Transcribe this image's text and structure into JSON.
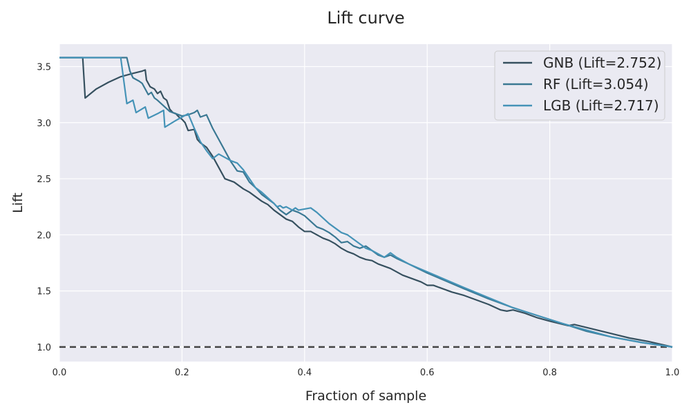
{
  "chart_data": {
    "type": "line",
    "title": "Lift curve",
    "xlabel": "Fraction of sample",
    "ylabel": "Lift",
    "xlim": [
      0,
      1
    ],
    "ylim": [
      0.87,
      3.7
    ],
    "x_ticks": [
      "0.0",
      "0.2",
      "0.4",
      "0.6",
      "0.8",
      "1.0"
    ],
    "y_ticks": [
      "1.0",
      "1.5",
      "2.0",
      "2.5",
      "3.0",
      "3.5"
    ],
    "grid": true,
    "legend_position": "top-right",
    "background_color": "#eaeaf2",
    "baseline": {
      "y": 1.0,
      "style": "dashed",
      "color": "#444444"
    },
    "series": [
      {
        "name": "GNB (Lift=2.752)",
        "color": "#36505f",
        "points": [
          [
            0,
            3.58
          ],
          [
            0.038,
            3.58
          ],
          [
            0.042,
            3.22
          ],
          [
            0.06,
            3.3
          ],
          [
            0.08,
            3.36
          ],
          [
            0.1,
            3.41
          ],
          [
            0.12,
            3.44
          ],
          [
            0.135,
            3.46
          ],
          [
            0.14,
            3.47
          ],
          [
            0.142,
            3.38
          ],
          [
            0.148,
            3.32
          ],
          [
            0.155,
            3.3
          ],
          [
            0.16,
            3.26
          ],
          [
            0.165,
            3.28
          ],
          [
            0.17,
            3.22
          ],
          [
            0.175,
            3.2
          ],
          [
            0.18,
            3.12
          ],
          [
            0.185,
            3.09
          ],
          [
            0.19,
            3.08
          ],
          [
            0.195,
            3.05
          ],
          [
            0.2,
            3.03
          ],
          [
            0.205,
            3.0
          ],
          [
            0.21,
            2.93
          ],
          [
            0.22,
            2.94
          ],
          [
            0.225,
            2.85
          ],
          [
            0.23,
            2.82
          ],
          [
            0.24,
            2.78
          ],
          [
            0.25,
            2.7
          ],
          [
            0.26,
            2.6
          ],
          [
            0.265,
            2.55
          ],
          [
            0.27,
            2.5
          ],
          [
            0.275,
            2.49
          ],
          [
            0.28,
            2.48
          ],
          [
            0.285,
            2.47
          ],
          [
            0.29,
            2.45
          ],
          [
            0.295,
            2.43
          ],
          [
            0.3,
            2.41
          ],
          [
            0.31,
            2.38
          ],
          [
            0.32,
            2.34
          ],
          [
            0.33,
            2.3
          ],
          [
            0.34,
            2.27
          ],
          [
            0.35,
            2.22
          ],
          [
            0.36,
            2.18
          ],
          [
            0.37,
            2.14
          ],
          [
            0.38,
            2.12
          ],
          [
            0.39,
            2.07
          ],
          [
            0.4,
            2.03
          ],
          [
            0.41,
            2.03
          ],
          [
            0.42,
            2.0
          ],
          [
            0.43,
            1.97
          ],
          [
            0.44,
            1.95
          ],
          [
            0.45,
            1.92
          ],
          [
            0.46,
            1.88
          ],
          [
            0.47,
            1.85
          ],
          [
            0.48,
            1.83
          ],
          [
            0.49,
            1.8
          ],
          [
            0.5,
            1.78
          ],
          [
            0.51,
            1.77
          ],
          [
            0.52,
            1.74
          ],
          [
            0.53,
            1.72
          ],
          [
            0.54,
            1.7
          ],
          [
            0.55,
            1.67
          ],
          [
            0.56,
            1.64
          ],
          [
            0.57,
            1.62
          ],
          [
            0.58,
            1.6
          ],
          [
            0.59,
            1.58
          ],
          [
            0.6,
            1.55
          ],
          [
            0.61,
            1.55
          ],
          [
            0.62,
            1.53
          ],
          [
            0.64,
            1.49
          ],
          [
            0.66,
            1.46
          ],
          [
            0.68,
            1.42
          ],
          [
            0.7,
            1.38
          ],
          [
            0.72,
            1.33
          ],
          [
            0.73,
            1.32
          ],
          [
            0.74,
            1.33
          ],
          [
            0.76,
            1.3
          ],
          [
            0.78,
            1.26
          ],
          [
            0.8,
            1.23
          ],
          [
            0.83,
            1.19
          ],
          [
            0.84,
            1.2
          ],
          [
            0.87,
            1.16
          ],
          [
            0.9,
            1.12
          ],
          [
            0.93,
            1.08
          ],
          [
            0.96,
            1.05
          ],
          [
            1.0,
            1.0
          ]
        ]
      },
      {
        "name": "RF (Lift=3.054)",
        "color": "#3a7893",
        "points": [
          [
            0,
            3.58
          ],
          [
            0.11,
            3.58
          ],
          [
            0.115,
            3.46
          ],
          [
            0.12,
            3.4
          ],
          [
            0.13,
            3.37
          ],
          [
            0.135,
            3.35
          ],
          [
            0.14,
            3.3
          ],
          [
            0.145,
            3.25
          ],
          [
            0.15,
            3.27
          ],
          [
            0.155,
            3.22
          ],
          [
            0.16,
            3.2
          ],
          [
            0.17,
            3.15
          ],
          [
            0.18,
            3.1
          ],
          [
            0.19,
            3.08
          ],
          [
            0.2,
            3.06
          ],
          [
            0.21,
            3.07
          ],
          [
            0.22,
            3.09
          ],
          [
            0.225,
            3.11
          ],
          [
            0.23,
            3.05
          ],
          [
            0.24,
            3.07
          ],
          [
            0.25,
            2.95
          ],
          [
            0.26,
            2.85
          ],
          [
            0.27,
            2.75
          ],
          [
            0.28,
            2.65
          ],
          [
            0.29,
            2.57
          ],
          [
            0.3,
            2.56
          ],
          [
            0.31,
            2.47
          ],
          [
            0.32,
            2.42
          ],
          [
            0.33,
            2.36
          ],
          [
            0.34,
            2.32
          ],
          [
            0.35,
            2.28
          ],
          [
            0.36,
            2.22
          ],
          [
            0.37,
            2.18
          ],
          [
            0.38,
            2.22
          ],
          [
            0.39,
            2.2
          ],
          [
            0.4,
            2.17
          ],
          [
            0.41,
            2.12
          ],
          [
            0.42,
            2.07
          ],
          [
            0.43,
            2.05
          ],
          [
            0.44,
            2.02
          ],
          [
            0.45,
            1.98
          ],
          [
            0.46,
            1.93
          ],
          [
            0.47,
            1.94
          ],
          [
            0.48,
            1.9
          ],
          [
            0.49,
            1.88
          ],
          [
            0.5,
            1.9
          ],
          [
            0.51,
            1.86
          ],
          [
            0.52,
            1.82
          ],
          [
            0.53,
            1.8
          ],
          [
            0.54,
            1.82
          ],
          [
            0.55,
            1.79
          ],
          [
            0.57,
            1.74
          ],
          [
            0.6,
            1.66
          ],
          [
            0.63,
            1.59
          ],
          [
            0.66,
            1.52
          ],
          [
            0.7,
            1.43
          ],
          [
            0.74,
            1.35
          ],
          [
            0.78,
            1.28
          ],
          [
            0.82,
            1.21
          ],
          [
            0.86,
            1.14
          ],
          [
            0.9,
            1.09
          ],
          [
            0.95,
            1.04
          ],
          [
            1.0,
            1.0
          ]
        ]
      },
      {
        "name": "LGB (Lift=2.717)",
        "color": "#4593b7",
        "points": [
          [
            0,
            3.58
          ],
          [
            0.1,
            3.58
          ],
          [
            0.11,
            3.17
          ],
          [
            0.12,
            3.2
          ],
          [
            0.125,
            3.09
          ],
          [
            0.14,
            3.14
          ],
          [
            0.145,
            3.04
          ],
          [
            0.16,
            3.08
          ],
          [
            0.17,
            3.11
          ],
          [
            0.172,
            2.96
          ],
          [
            0.19,
            3.02
          ],
          [
            0.2,
            3.05
          ],
          [
            0.21,
            3.08
          ],
          [
            0.22,
            2.95
          ],
          [
            0.23,
            2.83
          ],
          [
            0.24,
            2.75
          ],
          [
            0.25,
            2.68
          ],
          [
            0.26,
            2.72
          ],
          [
            0.27,
            2.69
          ],
          [
            0.28,
            2.66
          ],
          [
            0.29,
            2.64
          ],
          [
            0.3,
            2.58
          ],
          [
            0.31,
            2.5
          ],
          [
            0.32,
            2.42
          ],
          [
            0.33,
            2.38
          ],
          [
            0.34,
            2.33
          ],
          [
            0.35,
            2.28
          ],
          [
            0.355,
            2.25
          ],
          [
            0.36,
            2.26
          ],
          [
            0.365,
            2.24
          ],
          [
            0.37,
            2.25
          ],
          [
            0.38,
            2.22
          ],
          [
            0.385,
            2.24
          ],
          [
            0.39,
            2.22
          ],
          [
            0.4,
            2.23
          ],
          [
            0.41,
            2.24
          ],
          [
            0.42,
            2.2
          ],
          [
            0.43,
            2.15
          ],
          [
            0.44,
            2.1
          ],
          [
            0.45,
            2.06
          ],
          [
            0.46,
            2.02
          ],
          [
            0.47,
            2.0
          ],
          [
            0.48,
            1.96
          ],
          [
            0.49,
            1.92
          ],
          [
            0.5,
            1.88
          ],
          [
            0.51,
            1.86
          ],
          [
            0.52,
            1.83
          ],
          [
            0.53,
            1.8
          ],
          [
            0.54,
            1.84
          ],
          [
            0.55,
            1.8
          ],
          [
            0.57,
            1.74
          ],
          [
            0.6,
            1.67
          ],
          [
            0.63,
            1.6
          ],
          [
            0.66,
            1.53
          ],
          [
            0.7,
            1.44
          ],
          [
            0.74,
            1.35
          ],
          [
            0.78,
            1.28
          ],
          [
            0.82,
            1.21
          ],
          [
            0.86,
            1.15
          ],
          [
            0.9,
            1.09
          ],
          [
            0.95,
            1.04
          ],
          [
            1.0,
            1.0
          ]
        ]
      }
    ]
  }
}
